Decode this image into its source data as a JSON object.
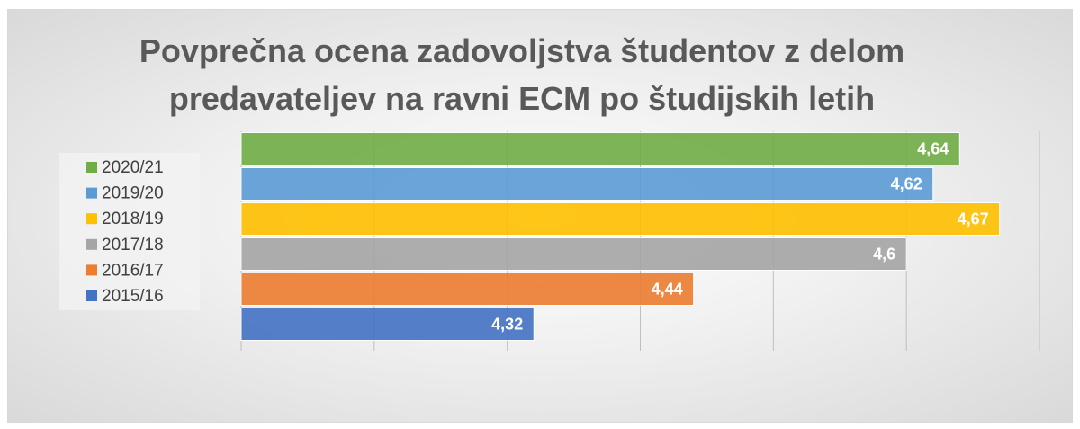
{
  "chart_data": {
    "type": "barh",
    "title": "Povprečna ocena zadovoljstva študentov z delom predavateljev na ravni ECM po študijskih letih",
    "categories": [
      "2020/21",
      "2019/20",
      "2018/19",
      "2017/18",
      "2016/17",
      "2015/16"
    ],
    "values": [
      4.64,
      4.62,
      4.67,
      4.6,
      4.44,
      4.32
    ],
    "value_labels": [
      "4,64",
      "4,62",
      "4,67",
      "4,6",
      "4,44",
      "4,32"
    ],
    "colors": [
      "#70ad47",
      "#5b9bd5",
      "#ffc000",
      "#a5a5a5",
      "#ed7d31",
      "#4472c4"
    ],
    "xlim": [
      4.1,
      4.7
    ],
    "xticks": [
      4.1,
      4.2,
      4.3,
      4.4,
      4.5,
      4.6,
      4.7
    ],
    "grid": true,
    "legend": "left"
  }
}
